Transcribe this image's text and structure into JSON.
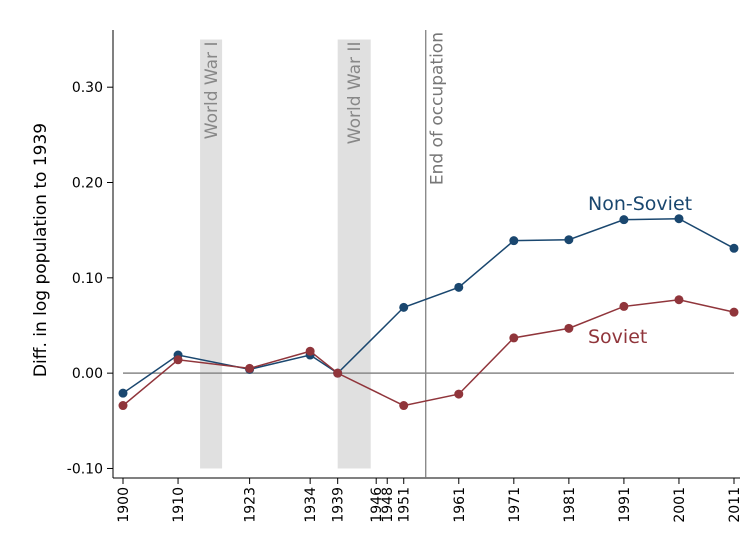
{
  "chart_data": {
    "type": "line",
    "y_label": "Diff. in log population to 1939",
    "x": [
      1900,
      1910,
      1923,
      1934,
      1939,
      1951,
      1961,
      1971,
      1981,
      1991,
      2001,
      2011
    ],
    "series": [
      {
        "name": "Non-Soviet",
        "color": "#1a476f",
        "values": [
          -0.021,
          0.019,
          0.004,
          0.019,
          0,
          0.069,
          0.09,
          0.139,
          0.14,
          0.161,
          0.162,
          0.131
        ]
      },
      {
        "name": "Soviet",
        "color": "#90353b",
        "values": [
          -0.034,
          0.014,
          0.005,
          0.023,
          0,
          -0.034,
          -0.022,
          0.037,
          0.047,
          0.07,
          0.077,
          0.064
        ]
      }
    ],
    "xlim": [
      1900,
      2011
    ],
    "xticks": [
      1900,
      1910,
      1923,
      1934,
      1939,
      1946,
      1948,
      1951,
      1961,
      1971,
      1981,
      1991,
      2001,
      2011
    ],
    "ylim": [
      -0.11,
      0.36
    ],
    "yticks": [
      {
        "value": -0.1,
        "label": "-0.10"
      },
      {
        "value": 0,
        "label": "0.00"
      },
      {
        "value": 0.1,
        "label": "0.10"
      },
      {
        "value": 0.2,
        "label": "0.20"
      },
      {
        "value": 0.3,
        "label": "0.30"
      }
    ],
    "reference_line": 0,
    "shaded_regions": [
      {
        "label": "World War I",
        "start": 1914,
        "end": 1918,
        "y_range": [
          -0.1,
          0.35
        ]
      },
      {
        "label": "World War II",
        "start": 1939,
        "end": 1945,
        "y_range": [
          -0.1,
          0.35
        ]
      }
    ],
    "vertical_line": {
      "label": "End of occupation",
      "x": 1955
    }
  }
}
